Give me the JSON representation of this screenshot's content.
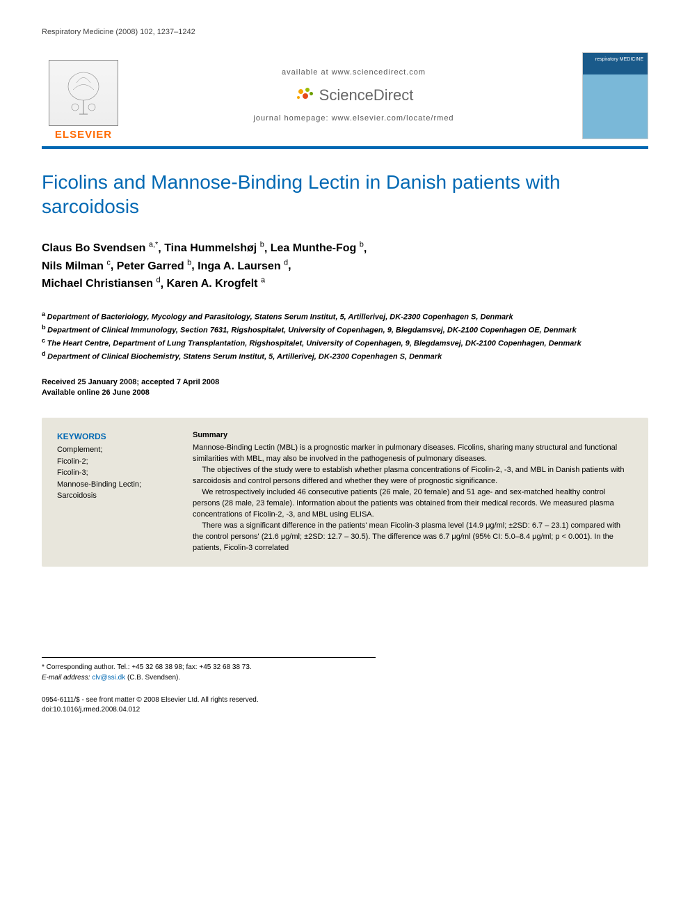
{
  "journal_ref": "Respiratory Medicine (2008) 102, 1237–1242",
  "masthead": {
    "elsevier": "ELSEVIER",
    "available_at": "available at www.sciencedirect.com",
    "sd_brand": "ScienceDirect",
    "homepage_label": "journal homepage: ",
    "homepage_url": "www.elsevier.com/locate/rmed",
    "cover_text": "respiratory MEDICINE",
    "sd_dot_colors": [
      "#f7a600",
      "#9bbb00",
      "#e64a19",
      "#6c9e00",
      "#f7a600"
    ],
    "accent_color": "#0068b3",
    "elsevier_orange": "#ff6a00"
  },
  "title": "Ficolins and Mannose-Binding Lectin in Danish patients with sarcoidosis",
  "authors_html_parts": [
    {
      "name": "Claus Bo Svendsen",
      "sup": "a,*"
    },
    {
      "name": "Tina Hummelshøj",
      "sup": "b"
    },
    {
      "name": "Lea Munthe-Fog",
      "sup": "b"
    },
    {
      "name": "Nils Milman",
      "sup": "c"
    },
    {
      "name": "Peter Garred",
      "sup": "b"
    },
    {
      "name": "Inga A. Laursen",
      "sup": "d"
    },
    {
      "name": "Michael Christiansen",
      "sup": "d"
    },
    {
      "name": "Karen A. Krogfelt",
      "sup": "a"
    }
  ],
  "affiliations": [
    {
      "sup": "a",
      "text": "Department of Bacteriology, Mycology and Parasitology, Statens Serum Institut, 5, Artillerivej, DK-2300 Copenhagen S, Denmark"
    },
    {
      "sup": "b",
      "text": "Department of Clinical Immunology, Section 7631, Rigshospitalet, University of Copenhagen, 9, Blegdamsvej, DK-2100 Copenhagen OE, Denmark"
    },
    {
      "sup": "c",
      "text": "The Heart Centre, Department of Lung Transplantation, Rigshospitalet, University of Copenhagen, 9, Blegdamsvej, DK-2100 Copenhagen, Denmark"
    },
    {
      "sup": "d",
      "text": "Department of Clinical Biochemistry, Statens Serum Institut, 5, Artillerivej, DK-2300 Copenhagen S, Denmark"
    }
  ],
  "dates": {
    "received_accepted": "Received 25 January 2008; accepted 7 April 2008",
    "online": "Available online 26 June 2008"
  },
  "keywords": {
    "heading": "KEYWORDS",
    "items": [
      "Complement;",
      "Ficolin-2;",
      "Ficolin-3;",
      "Mannose-Binding Lectin;",
      "Sarcoidosis"
    ]
  },
  "summary": {
    "heading": "Summary",
    "p1": "Mannose-Binding Lectin (MBL) is a prognostic marker in pulmonary diseases. Ficolins, sharing many structural and functional similarities with MBL, may also be involved in the pathogenesis of pulmonary diseases.",
    "p2": "The objectives of the study were to establish whether plasma concentrations of Ficolin-2, -3, and MBL in Danish patients with sarcoidosis and control persons differed and whether they were of prognostic significance.",
    "p3": "We retrospectively included 46 consecutive patients (26 male, 20 female) and 51 age- and sex-matched healthy control persons (28 male, 23 female). Information about the patients was obtained from their medical records. We measured plasma concentrations of Ficolin-2, -3, and MBL using ELISA.",
    "p4": "There was a significant difference in the patients' mean Ficolin-3 plasma level (14.9 μg/ml; ±2SD: 6.7 – 23.1) compared with the control persons' (21.6 μg/ml; ±2SD: 12.7 – 30.5). The difference was 6.7 μg/ml (95% CI: 5.0–8.4 μg/ml; p < 0.001). In the patients, Ficolin-3 correlated"
  },
  "footnotes": {
    "corresponding": "* Corresponding author. Tel.: +45 32 68 38 98; fax: +45 32 68 38 73.",
    "email_label": "E-mail address: ",
    "email": "clv@ssi.dk",
    "email_tail": " (C.B. Svendsen)."
  },
  "copyright": {
    "line1": "0954-6111/$ - see front matter © 2008 Elsevier Ltd. All rights reserved.",
    "line2": "doi:10.1016/j.rmed.2008.04.012"
  },
  "abstract_bg": "#e8e6dc"
}
